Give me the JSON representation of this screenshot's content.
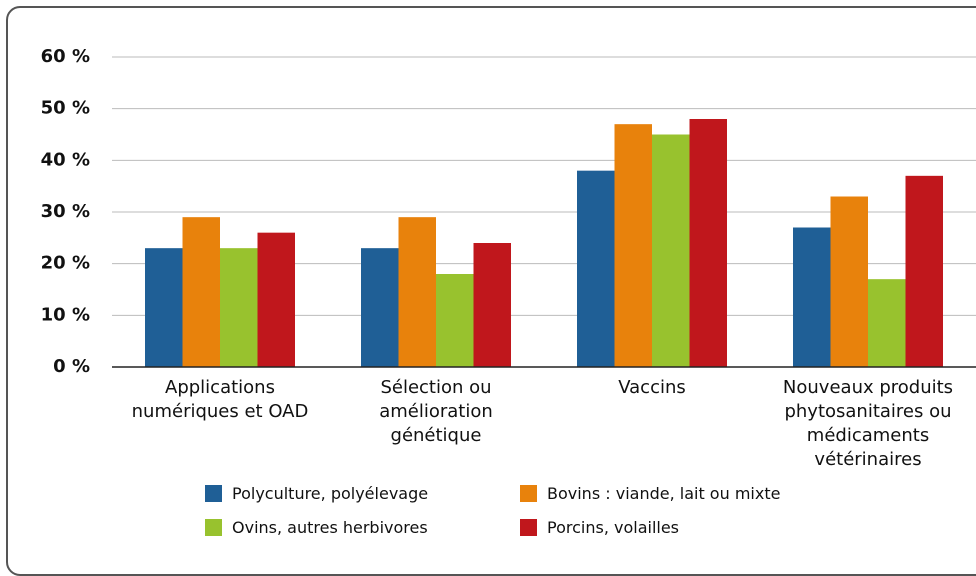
{
  "chart_data": {
    "type": "bar",
    "categories": [
      "Applications numériques et OAD",
      "Sélection ou amélioration génétique",
      "Vaccins",
      "Nouveaux produits phytosanitaires ou médicaments vétérinaires"
    ],
    "series": [
      {
        "name": "Polyculture, polyélevage",
        "color": "#1f5f96",
        "values": [
          23,
          23,
          38,
          27
        ]
      },
      {
        "name": "Bovins : viande, lait ou mixte",
        "color": "#e8820c",
        "values": [
          29,
          29,
          47,
          33
        ]
      },
      {
        "name": "Ovins, autres herbivores",
        "color": "#98c22e",
        "values": [
          23,
          18,
          45,
          17
        ]
      },
      {
        "name": "Porcins, volailles",
        "color": "#c0171c",
        "values": [
          26,
          24,
          48,
          37
        ]
      }
    ],
    "ylim": [
      0,
      60
    ],
    "yticks": [
      {
        "value": 0,
        "label": "0 %"
      },
      {
        "value": 10,
        "label": "10 %"
      },
      {
        "value": 20,
        "label": "20 %"
      },
      {
        "value": 30,
        "label": "30 %"
      },
      {
        "value": 40,
        "label": "40 %"
      },
      {
        "value": 50,
        "label": "50 %"
      },
      {
        "value": 60,
        "label": "60 %"
      }
    ],
    "grid": true,
    "legend": "bottom"
  }
}
